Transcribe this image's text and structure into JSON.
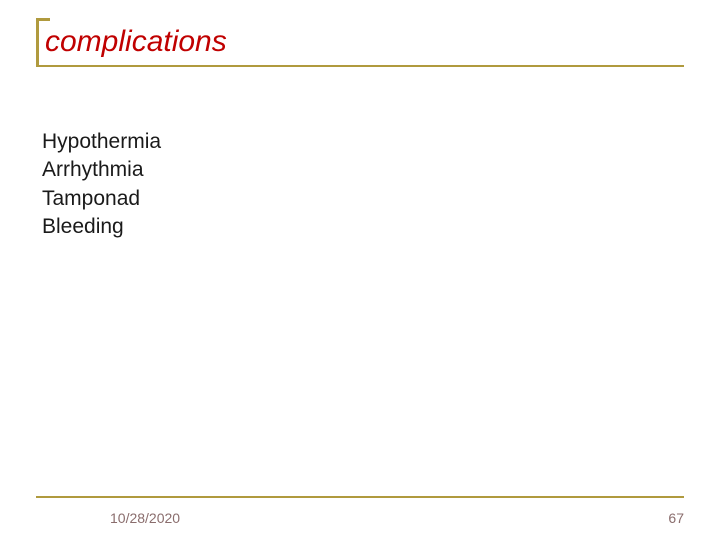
{
  "colors": {
    "accent": "#b09a3e",
    "title": "#c00000",
    "body": "#1a1a1a",
    "footer": "#8a6d6d",
    "background": "#ffffff"
  },
  "title": "complications",
  "body_items": [
    "Hypothermia",
    "Arrhythmia",
    "Tamponad",
    "Bleeding"
  ],
  "footer": {
    "date": "10/28/2020",
    "page": "67"
  },
  "typography": {
    "title_fontsize": 30,
    "title_style": "italic",
    "body_fontsize": 21,
    "footer_fontsize": 14
  }
}
